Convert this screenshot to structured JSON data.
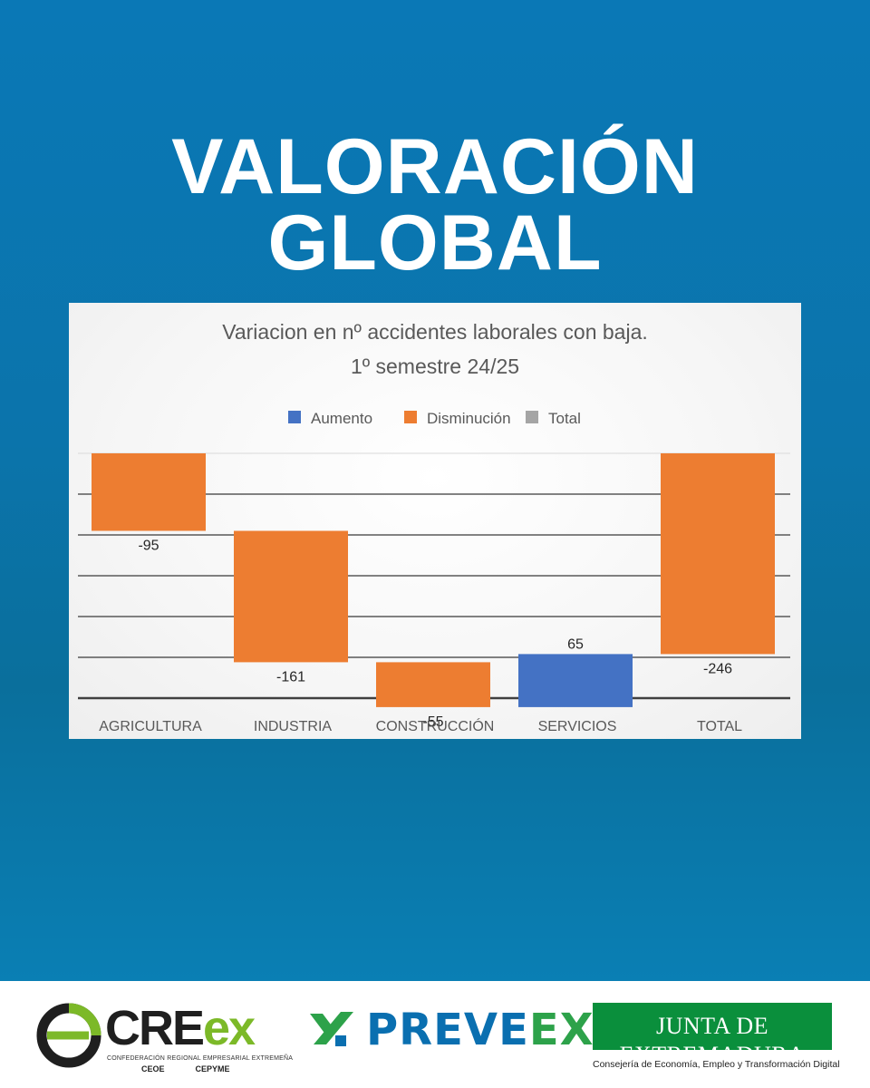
{
  "headline": {
    "line1": "VALORACIÓN",
    "line2": "GLOBAL"
  },
  "chart_data": {
    "type": "waterfall",
    "title": "Variacion en nº accidentes laborales con baja.",
    "subtitle": "1º semestre 24/25",
    "legend": [
      {
        "label": "Aumento",
        "color": "#4472c4"
      },
      {
        "label": "Disminución",
        "color": "#ed7d31"
      },
      {
        "label": "Total",
        "color": "#a5a5a5"
      }
    ],
    "legend_position": "top",
    "categories": [
      "AGRICULTURA",
      "INDUSTRIA",
      "CONSTRUCCIÓN",
      "SERVICIOS",
      "TOTAL"
    ],
    "values": [
      -95,
      -161,
      -55,
      65,
      -246
    ],
    "value_labels": [
      "-95",
      "-161",
      "-55",
      "65",
      "-246"
    ],
    "bar_types": [
      "decrease",
      "decrease",
      "decrease",
      "increase",
      "decrease"
    ],
    "is_total": [
      false,
      false,
      false,
      false,
      true
    ],
    "ylim": [
      -300,
      0
    ],
    "grid": true,
    "y_tick_labels_shown": false
  },
  "footer": {
    "creex_brand_a": "CRE",
    "creex_brand_b": "ex",
    "creex_subtitle": "CONFEDERACIÓN REGIONAL EMPRESARIAL EXTREMEÑA",
    "creex_partner1": "CEOE",
    "creex_partner2": "CEPYME",
    "preveex_brand_a": "PREVE",
    "preveex_brand_b": "EX",
    "junta_title": "JUNTA DE EXTREMADURA",
    "junta_subtitle": "Consejería de Economía, Empleo y Transformación Digital"
  }
}
